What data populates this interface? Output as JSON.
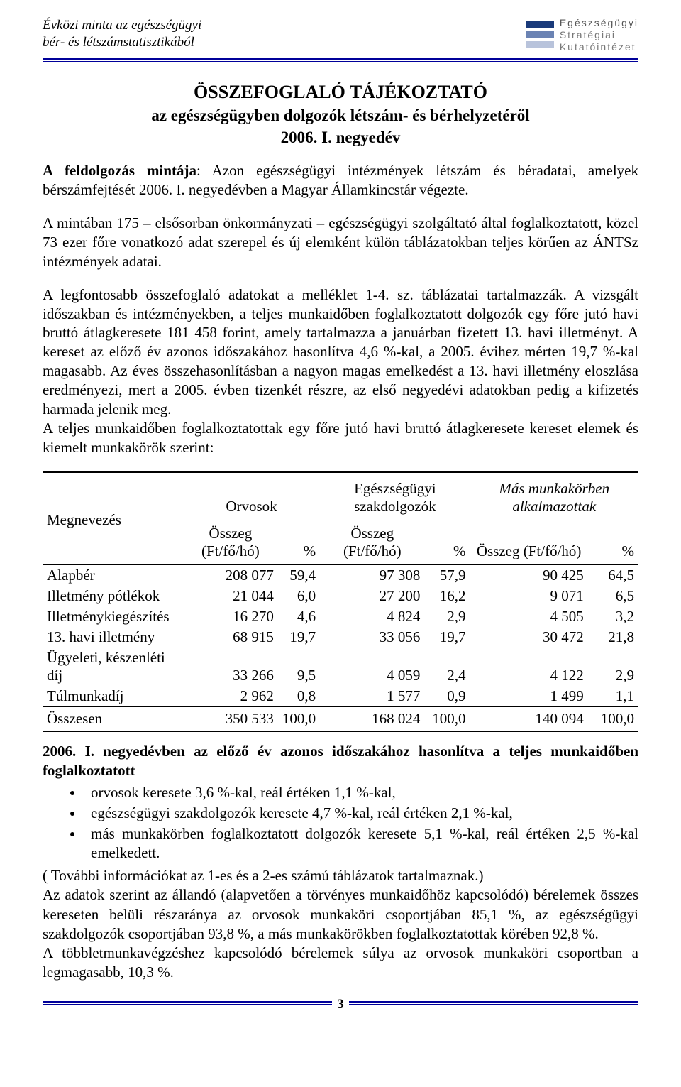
{
  "header": {
    "left_line1": "Évközi minta az egészségügyi",
    "left_line2": "bér- és létszámstatisztikából",
    "logo_colors": [
      "#1a3a7a",
      "#6b83b3",
      "#b8c3db"
    ],
    "logo_text1": "Egészségügyi",
    "logo_text2": "Stratégiai",
    "logo_text3": "Kutatóintézet"
  },
  "title": {
    "line1": "ÖSSZEFOGLALÓ TÁJÉKOZTATÓ",
    "line2": "az egészségügyben dolgozók létszám- és bérhelyzetéről",
    "line3": "2006. I. negyedév"
  },
  "para1_bold": "A feldolgozás mintája",
  "para1_rest": ": Azon egészségügyi intézmények létszám és béradatai, amelyek bérszámfejtését 2006. I. negyedévben a Magyar Államkincstár végezte.",
  "para2": "A mintában 175 – elsősorban önkormányzati – egészségügyi szolgáltató által foglalkoztatott, közel 73 ezer főre vonatkozó adat szerepel és új elemként külön táblázatokban teljes körűen az ÁNTSz intézmények adatai.",
  "para3": "A legfontosabb összefoglaló adatokat a melléklet 1-4. sz. táblázatai tartalmazzák. A vizsgált időszakban és intézményekben, a teljes munkaidőben foglalkoztatott dolgozók egy főre jutó havi bruttó átlagkeresete 181 458 forint, amely tartalmazza a januárban fizetett 13. havi illetményt. A kereset az előző év azonos időszakához hasonlítva 4,6 %-kal, a 2005. évihez mérten 19,7 %-kal magasabb. Az éves összehasonlításban a nagyon magas emelkedést a 13. havi illetmény eloszlása eredményezi, mert a 2005. évben tizenkét részre, az első negyedévi adatokban pedig a kifizetés harmada jelenik meg.",
  "para3b": "A teljes munkaidőben foglalkoztatottak egy főre jutó havi bruttó átlagkeresete kereset elemek és kiemelt munkakörök szerint:",
  "table": {
    "col_megnevezes": "Megnevezés",
    "grp_orvosok": "Orvosok",
    "grp_szak": "Egészségügyi szakdolgozók",
    "grp_mas": "Más munkakörben alkalmazottak",
    "sub_osszeg1": "Összeg (Ft/fő/hó)",
    "sub_pct": "%",
    "sub_osszeg2": "Összeg (Ft/fő/hó)",
    "sub_osszeg3": "Összeg (Ft/fő/hó)",
    "rows": [
      {
        "label": "Alapbér",
        "v1": "208 077",
        "p1": "59,4",
        "v2": "97 308",
        "p2": "57,9",
        "v3": "90 425",
        "p3": "64,5"
      },
      {
        "label": "Illetmény pótlékok",
        "v1": "21 044",
        "p1": "6,0",
        "v2": "27 200",
        "p2": "16,2",
        "v3": "9 071",
        "p3": "6,5"
      },
      {
        "label": "Illetménykiegészítés",
        "v1": "16 270",
        "p1": "4,6",
        "v2": "4 824",
        "p2": "2,9",
        "v3": "4 505",
        "p3": "3,2"
      },
      {
        "label": "13. havi illetmény",
        "v1": "68 915",
        "p1": "19,7",
        "v2": "33 056",
        "p2": "19,7",
        "v3": "30 472",
        "p3": "21,8"
      },
      {
        "label": "Ügyeleti, készenléti díj",
        "v1": "33 266",
        "p1": "9,5",
        "v2": "4 059",
        "p2": "2,4",
        "v3": "4 122",
        "p3": "2,9"
      },
      {
        "label": "Túlmunkadíj",
        "v1": "2 962",
        "p1": "0,8",
        "v2": "1 577",
        "p2": "0,9",
        "v3": "1 499",
        "p3": "1,1"
      }
    ],
    "total": {
      "label": "Összesen",
      "v1": "350 533",
      "p1": "100,0",
      "v2": "168 024",
      "p2": "100,0",
      "v3": "140 094",
      "p3": "100,0"
    }
  },
  "after": {
    "lead": "2006. I. negyedévben az előző év azonos időszakához hasonlítva a teljes munkaidőben foglalkoztatott",
    "bullets": [
      "orvosok keresete 3,6 %-kal, reál értéken 1,1 %-kal,",
      "egészségügyi szakdolgozók  keresete 4,7 %-kal, reál értéken 2,1 %-kal,",
      "más munkakörben foglalkoztatott dolgozók keresete 5,1 %-kal, reál értéken 2,5 %-kal emelkedett."
    ],
    "p4": "( További információkat az 1-es és a 2-es számú táblázatok tartalmaznak.)",
    "p5": "Az adatok szerint az állandó (alapvetően a törvényes munkaidőhöz kapcsolódó) bérelemek összes kereseten belüli részaránya az orvosok munkaköri csoportjában 85,1 %, az egészségügyi szakdolgozók csoportjában 93,8 %, a más munkakörökben foglalkoztatottak körében 92,8 %.",
    "p6": "A többletmunkavégzéshez kapcsolódó bérelemek súlya az orvosok munkaköri csoportban a legmagasabb, 10,3 %."
  },
  "page_number": "3",
  "colors": {
    "rule": "#000099"
  }
}
